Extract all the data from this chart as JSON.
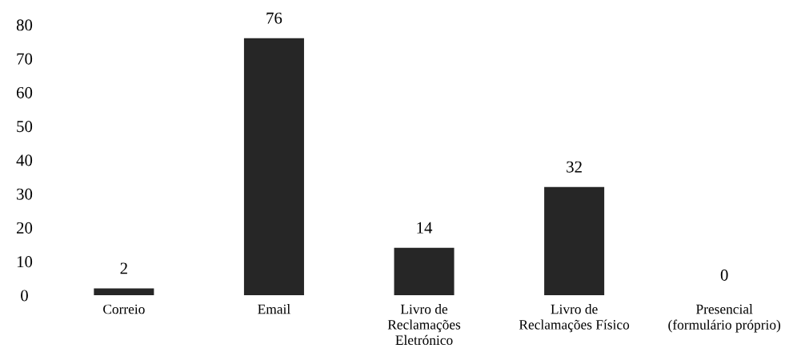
{
  "chart_data": {
    "type": "bar",
    "categories": [
      "Correio",
      "Email",
      "Livro de\nReclamações\nEletrónico",
      "Livro de\nReclamações Físico",
      "Presencial\n(formulário próprio)"
    ],
    "values": [
      2,
      76,
      14,
      32,
      0
    ],
    "color": "#262626",
    "ylim": [
      0,
      80
    ],
    "yticks": [
      0,
      10,
      20,
      30,
      40,
      50,
      60,
      70,
      80
    ],
    "data_labels": true,
    "grid": false,
    "legend": false
  }
}
